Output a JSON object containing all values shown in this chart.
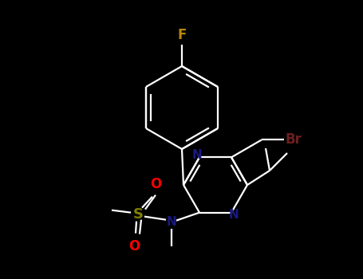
{
  "background_color": "#000000",
  "figure_width": 4.55,
  "figure_height": 3.5,
  "dpi": 100,
  "bond_color": "#ffffff",
  "bond_lw": 1.6,
  "colors": {
    "F": "#b8860b",
    "Br": "#6b2020",
    "S": "#808000",
    "O": "#ff0000",
    "N": "#191980",
    "C": "#ffffff"
  },
  "label_fontsize": 11
}
